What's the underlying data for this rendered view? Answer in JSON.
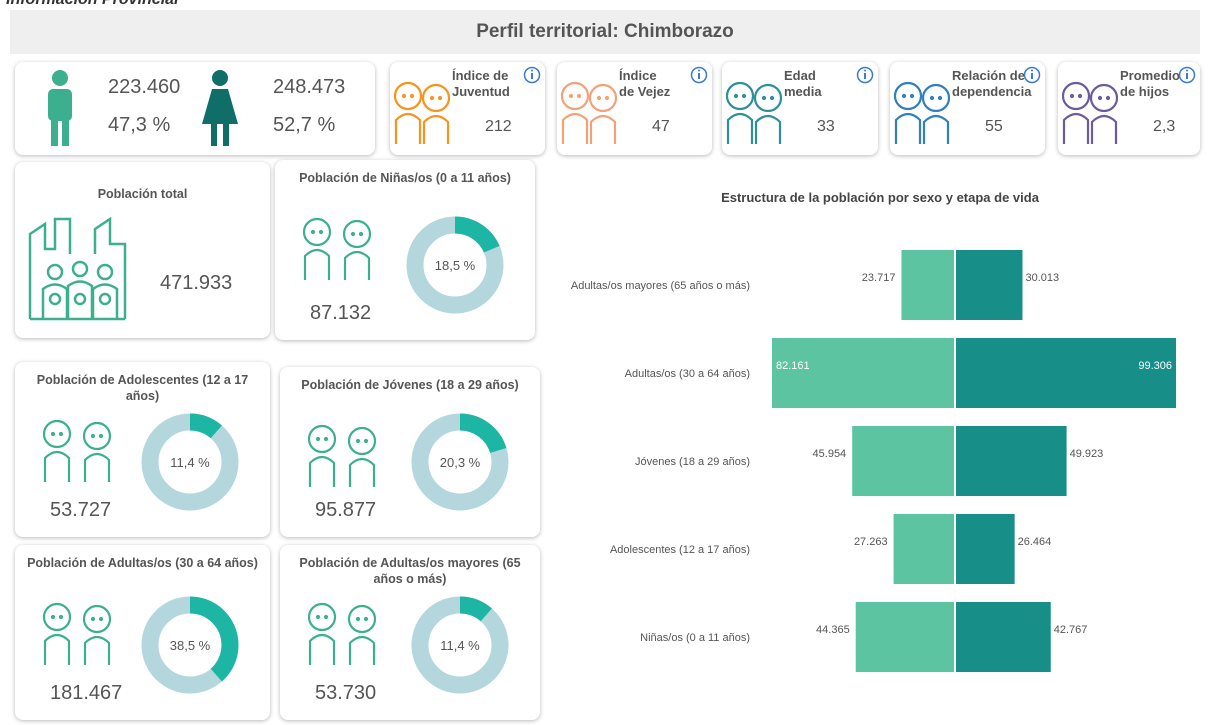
{
  "header": {
    "banner": "Información Provincial",
    "title": "Perfil territorial: Chimborazo"
  },
  "sex": {
    "men": {
      "count": "223.460",
      "share": "47,3 %"
    },
    "women": {
      "count": "248.473",
      "share": "52,7 %"
    }
  },
  "indicators": [
    {
      "label_lines": [
        "Índice de",
        "Juventud"
      ],
      "value": "212"
    },
    {
      "label_lines": [
        "Índice",
        "de Vejez"
      ],
      "value": "47"
    },
    {
      "label_lines": [
        "Edad",
        "media"
      ],
      "value": "33"
    },
    {
      "label_lines": [
        "Relación de",
        "dependencia"
      ],
      "value": "55"
    },
    {
      "label_lines": [
        "Promedio",
        "de hijos"
      ],
      "value": "2,3"
    }
  ],
  "total": {
    "title": "Población total",
    "value": "471.933"
  },
  "chart_data": [
    {
      "type": "donut",
      "title": "Población de Niñas/os (0 a 11 años)",
      "values": [
        18.5
      ],
      "value_labels": [
        "18,5 %"
      ],
      "count": "87.132",
      "color": "#1db5a3",
      "track_color": "#b3d7dd"
    },
    {
      "type": "donut",
      "title": "Población de Adolescentes (12 a 17 años)",
      "values": [
        11.4
      ],
      "value_labels": [
        "11,4 %"
      ],
      "count": "53.727",
      "color": "#1db5a3",
      "track_color": "#b3d7dd"
    },
    {
      "type": "donut",
      "title": "Población de Jóvenes (18 a 29 años)",
      "values": [
        20.3
      ],
      "value_labels": [
        "20,3 %"
      ],
      "count": "95.877",
      "color": "#1db5a3",
      "track_color": "#b3d7dd"
    },
    {
      "type": "donut",
      "title": "Población de Adultas/os (30 a 64 años)",
      "values": [
        38.5
      ],
      "value_labels": [
        "38,5 %"
      ],
      "count": "181.467",
      "color": "#1db5a3",
      "track_color": "#b3d7dd"
    },
    {
      "type": "donut",
      "title": "Población de Adultas/os mayores (65 años o más)",
      "values": [
        11.4
      ],
      "value_labels": [
        "11,4 %"
      ],
      "count": "53.730",
      "color": "#1db5a3",
      "track_color": "#b3d7dd"
    },
    {
      "type": "butterfly",
      "title": "Estructura de la población por sexo y etapa de vida",
      "categories": [
        "Adultas/os mayores (65 años o más)",
        "Adultas/os (30 a 64 años)",
        "Jóvenes (18 a 29 años)",
        "Adolescentes (12 a 17 años)",
        "Niñas/os (0 a 11 años)"
      ],
      "series": [
        {
          "color": "#5cc4a1",
          "values": [
            23717,
            82161,
            45954,
            27263,
            44365
          ],
          "value_labels": [
            "23.717",
            "82.161",
            "45.954",
            "27.263",
            "44.365"
          ]
        },
        {
          "color": "#178f88",
          "values": [
            30013,
            99306,
            49923,
            26464,
            42767
          ],
          "value_labels": [
            "30.013",
            "99.306",
            "49.923",
            "26.464",
            "42.767"
          ]
        }
      ]
    }
  ]
}
